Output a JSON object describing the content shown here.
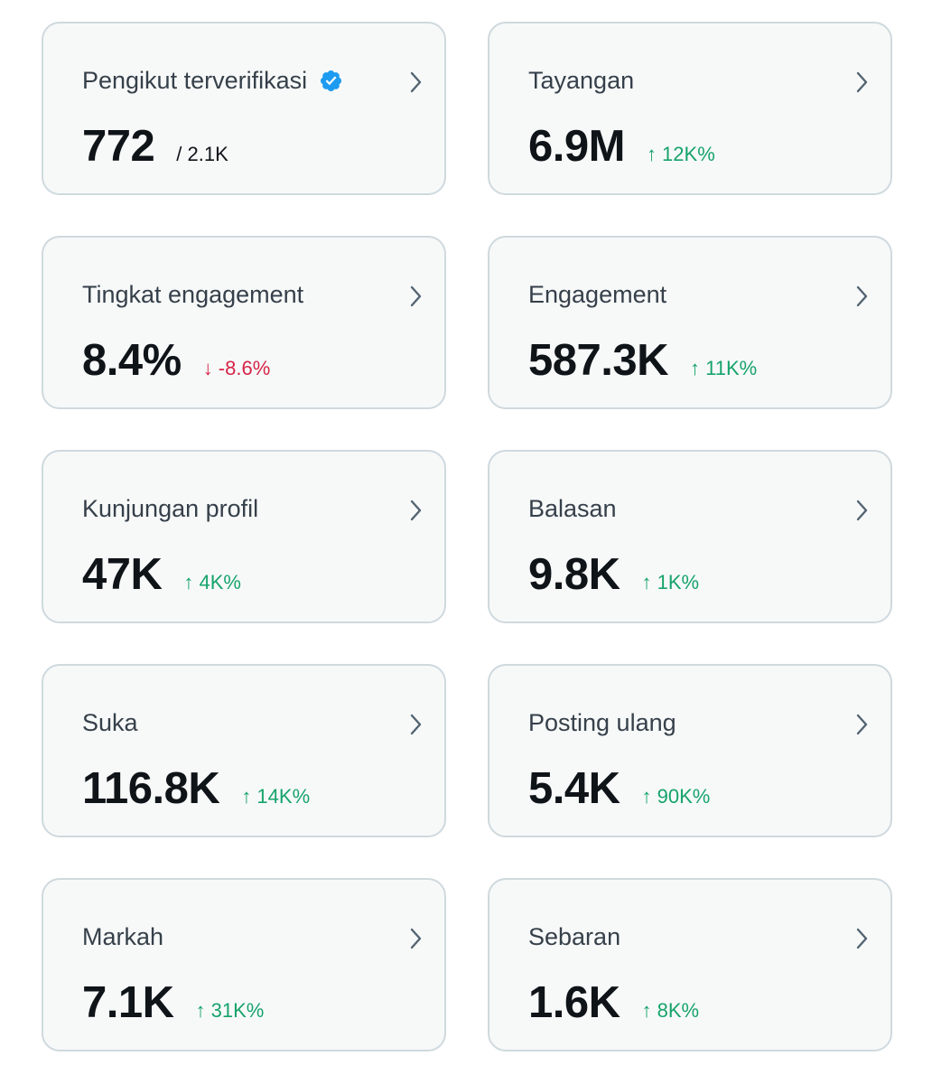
{
  "colors": {
    "card_bg": "#f7f9f9",
    "card_border": "#cfd9de",
    "label": "#36404a",
    "value": "#0f1419",
    "up": "#17a36b",
    "down": "#d62446",
    "verified": "#1d9bf0",
    "chevron": "#536471"
  },
  "cards": [
    {
      "label": "Pengikut terverifikasi",
      "value": "772",
      "extra": "/ 2.1K"
    },
    {
      "label": "Tayangan",
      "value": "6.9M",
      "delta": "↑ 12K%"
    },
    {
      "label": "Tingkat engagement",
      "value": "8.4%",
      "delta": "↓ -8.6%"
    },
    {
      "label": "Engagement",
      "value": "587.3K",
      "delta": "↑ 11K%"
    },
    {
      "label": "Kunjungan profil",
      "value": "47K",
      "delta": "↑ 4K%"
    },
    {
      "label": "Balasan",
      "value": "9.8K",
      "delta": "↑ 1K%"
    },
    {
      "label": "Suka",
      "value": "116.8K",
      "delta": "↑ 14K%"
    },
    {
      "label": "Posting ulang",
      "value": "5.4K",
      "delta": "↑ 90K%"
    },
    {
      "label": "Markah",
      "value": "7.1K",
      "delta": "↑ 31K%"
    },
    {
      "label": "Sebaran",
      "value": "1.6K",
      "delta": "↑ 8K%"
    }
  ]
}
